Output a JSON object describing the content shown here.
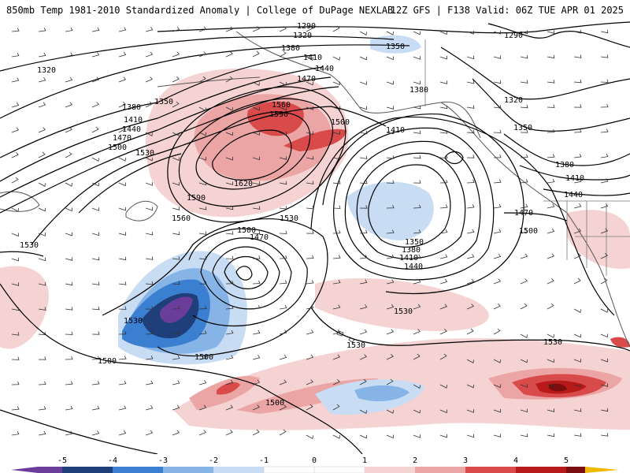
{
  "header": {
    "title_left": "850mb Temp 1981-2010 Standardized Anomaly | College of DuPage NEXLAB",
    "title_right": "12Z GFS | F138 Valid: 06Z TUE APR 01 2025"
  },
  "colors": {
    "anom_neg5": "#6a3d9a",
    "anom_neg4": "#1f3f7a",
    "anom_neg3": "#3b7fd0",
    "anom_neg2": "#86b4e6",
    "anom_neg1": "#c8dcf4",
    "anom_pos1": "#f6d3d3",
    "anom_pos2": "#eba5a5",
    "anom_pos3": "#d94a4a",
    "anom_pos4": "#b81a1a",
    "anom_pos5": "#7a0e0e",
    "coast": "#555555",
    "contour": "#000000"
  },
  "contour_labels": [
    {
      "id": "c1",
      "text": "1290"
    },
    {
      "id": "c2",
      "text": "1320"
    },
    {
      "id": "c3",
      "text": "1380"
    },
    {
      "id": "c4",
      "text": "1350"
    },
    {
      "id": "c5",
      "text": "1410"
    },
    {
      "id": "c6",
      "text": "1440"
    },
    {
      "id": "c7",
      "text": "1470"
    },
    {
      "id": "c8",
      "text": "1320"
    },
    {
      "id": "c9",
      "text": "1350"
    },
    {
      "id": "c10",
      "text": "1380"
    },
    {
      "id": "c11",
      "text": "1410"
    },
    {
      "id": "c12",
      "text": "1440"
    },
    {
      "id": "c13",
      "text": "1470"
    },
    {
      "id": "c14",
      "text": "1500"
    },
    {
      "id": "c15",
      "text": "1530"
    },
    {
      "id": "c16",
      "text": "1560"
    },
    {
      "id": "c17",
      "text": "1590"
    },
    {
      "id": "c18",
      "text": "1620"
    },
    {
      "id": "c19",
      "text": "1590"
    },
    {
      "id": "c20",
      "text": "1560"
    },
    {
      "id": "c21",
      "text": "1530"
    },
    {
      "id": "c22",
      "text": "1500"
    },
    {
      "id": "c23",
      "text": "1410"
    },
    {
      "id": "c24",
      "text": "1380"
    },
    {
      "id": "c25",
      "text": "1290"
    },
    {
      "id": "c26",
      "text": "1320"
    },
    {
      "id": "c27",
      "text": "1350"
    },
    {
      "id": "c28",
      "text": "1380"
    },
    {
      "id": "c29",
      "text": "1410"
    },
    {
      "id": "c30",
      "text": "1440"
    },
    {
      "id": "c31",
      "text": "1470"
    },
    {
      "id": "c32",
      "text": "1500"
    },
    {
      "id": "c33",
      "text": "1350"
    },
    {
      "id": "c34",
      "text": "1380"
    },
    {
      "id": "c35",
      "text": "1410"
    },
    {
      "id": "c36",
      "text": "1440"
    },
    {
      "id": "c37",
      "text": "1500"
    },
    {
      "id": "c38",
      "text": "1470"
    },
    {
      "id": "c39",
      "text": "1530"
    },
    {
      "id": "c40",
      "text": "1530"
    },
    {
      "id": "c41",
      "text": "1500"
    },
    {
      "id": "c42",
      "text": "1500"
    },
    {
      "id": "c43",
      "text": "1530"
    },
    {
      "id": "c44",
      "text": "1530"
    },
    {
      "id": "c45",
      "text": "1530"
    },
    {
      "id": "c46",
      "text": "1500"
    }
  ],
  "colorbar": {
    "ticks": [
      "-5",
      "-4",
      "-3",
      "-2",
      "-1",
      "0",
      "1",
      "2",
      "3",
      "4",
      "5"
    ]
  }
}
